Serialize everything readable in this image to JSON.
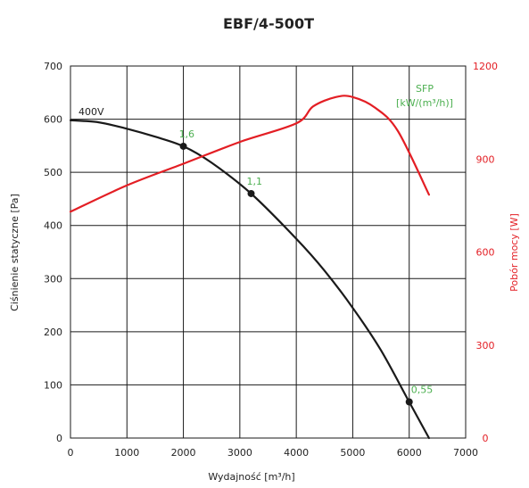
{
  "chart_data": {
    "type": "line",
    "title": "EBF/4-500T",
    "xlabel": "Wydajność [m³/h]",
    "ylabel": "Ciśnienie statyczne [Pa]",
    "y2label": "Pobór mocy [W]",
    "xlim": [
      0,
      7000
    ],
    "ylim": [
      0,
      700
    ],
    "y2lim": [
      0,
      1200
    ],
    "x_ticks": [
      "0",
      "1000",
      "2000",
      "3000",
      "4000",
      "5000",
      "6000",
      "7000"
    ],
    "y_ticks": [
      "0",
      "100",
      "200",
      "300",
      "400",
      "500",
      "600",
      "700"
    ],
    "y2_ticks": [
      "0",
      "300",
      "600",
      "900",
      "1200"
    ],
    "grid": true,
    "sfp_label": "SFP",
    "sfp_unit": "[kW/(m³/h)]",
    "series": [
      {
        "name": "400V",
        "axis": "left",
        "color": "#1a1a1a",
        "x": [
          0,
          500,
          1000,
          1500,
          2000,
          2500,
          3200,
          4000,
          4500,
          5000,
          5500,
          6000,
          6350
        ],
        "y": [
          598,
          594,
          582,
          567,
          549,
          518,
          460,
          375,
          315,
          245,
          165,
          68,
          0
        ]
      },
      {
        "name": "Pobór mocy",
        "axis": "right",
        "color": "#e31e24",
        "x": [
          0,
          1000,
          2000,
          3000,
          4000,
          4300,
          4700,
          5000,
          5400,
          5800,
          6350
        ],
        "y": [
          730,
          815,
          885,
          955,
          1015,
          1070,
          1100,
          1100,
          1065,
          990,
          785
        ]
      }
    ],
    "sfp_points": [
      {
        "x": 2000,
        "y": 549,
        "label": "1,6"
      },
      {
        "x": 3200,
        "y": 460,
        "label": "1,1"
      },
      {
        "x": 6000,
        "y": 68,
        "label": "0,55"
      }
    ],
    "colors": {
      "pressure": "#1a1a1a",
      "power": "#e31e24",
      "sfp": "#4caf50",
      "grid": "#1a1a1a"
    }
  }
}
